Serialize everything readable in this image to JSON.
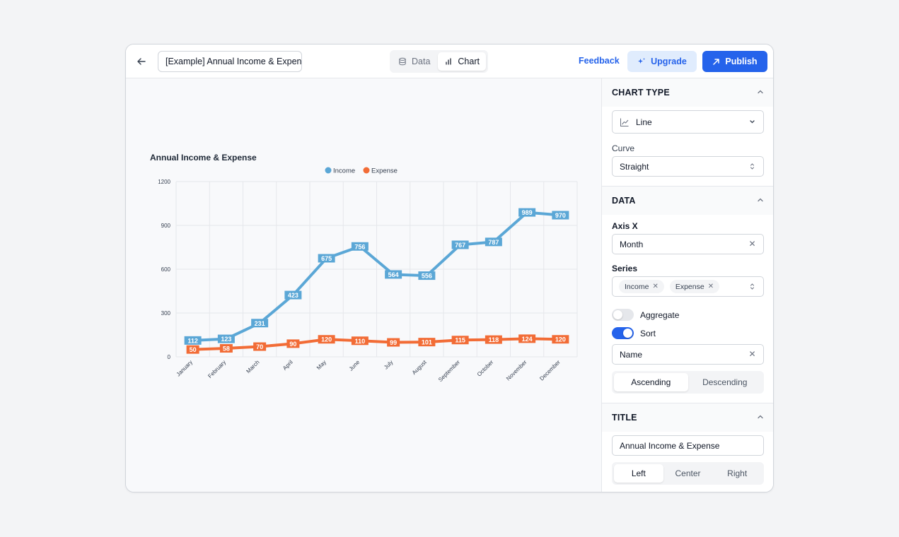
{
  "topbar": {
    "title_value": "[Example] Annual Income & Expen",
    "view_tabs": [
      {
        "label": "Data",
        "active": false
      },
      {
        "label": "Chart",
        "active": true
      }
    ],
    "feedback_label": "Feedback",
    "upgrade_label": "Upgrade",
    "publish_label": "Publish"
  },
  "chart_data": {
    "type": "line",
    "title": "Annual Income & Expense",
    "categories": [
      "January",
      "February",
      "March",
      "April",
      "May",
      "June",
      "July",
      "August",
      "September",
      "October",
      "November",
      "December"
    ],
    "series": [
      {
        "name": "Income",
        "color": "#5ba7d6",
        "values": [
          112,
          123,
          231,
          423,
          675,
          756,
          564,
          556,
          767,
          787,
          989,
          970
        ]
      },
      {
        "name": "Expense",
        "color": "#f26c36",
        "values": [
          50,
          58,
          70,
          90,
          120,
          110,
          99,
          101,
          115,
          118,
          124,
          120
        ]
      }
    ],
    "ylim": [
      0,
      1200
    ],
    "yticks": [
      0,
      300,
      600,
      900,
      1200
    ],
    "legend_position": "top-center",
    "grid": true,
    "data_labels": true
  },
  "panel": {
    "chart_type": {
      "heading": "CHART TYPE",
      "type_value": "Line",
      "curve_label": "Curve",
      "curve_value": "Straight"
    },
    "data": {
      "heading": "DATA",
      "axis_x_label": "Axis X",
      "axis_x_value": "Month",
      "series_label": "Series",
      "series_chips": [
        "Income",
        "Expense"
      ],
      "aggregate_label": "Aggregate",
      "aggregate_on": false,
      "sort_label": "Sort",
      "sort_on": true,
      "sort_field_value": "Name",
      "sort_order": [
        "Ascending",
        "Descending"
      ],
      "sort_order_active": "Ascending"
    },
    "title": {
      "heading": "TITLE",
      "title_value": "Annual Income & Expense",
      "align_options": [
        "Left",
        "Center",
        "Right"
      ],
      "align_active": "Left"
    }
  }
}
